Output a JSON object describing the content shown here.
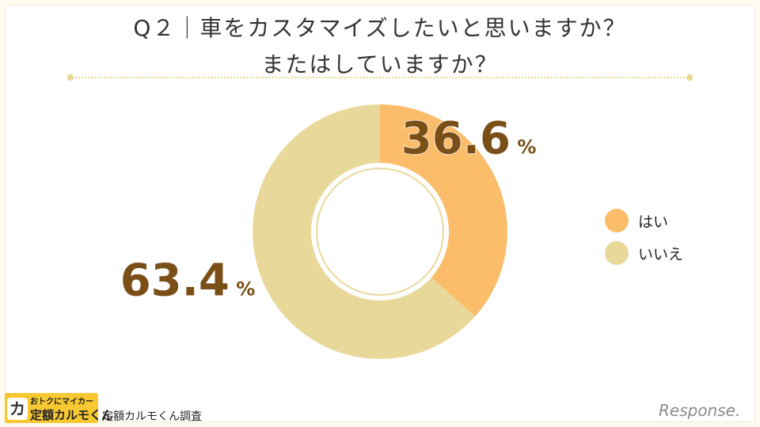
{
  "header": {
    "title_line1": "Q２｜車をカスタマイズしたいと思いますか？",
    "title_line2": "またはしていますか？"
  },
  "chart_data": {
    "type": "pie",
    "donut": true,
    "categories": [
      "はい",
      "いいえ"
    ],
    "values": [
      36.6,
      63.4
    ],
    "value_labels": [
      "36.6",
      "63.4"
    ],
    "unit": "%",
    "colors": [
      "#fbbd6a",
      "#e8d99b"
    ],
    "legend_position": "right"
  },
  "footer": {
    "logo_mark": "カ",
    "logo_line1": "おトクにマイカー",
    "logo_line2": "定額カルモくん",
    "source": "定額カルモくん調査",
    "brand": "Response."
  }
}
